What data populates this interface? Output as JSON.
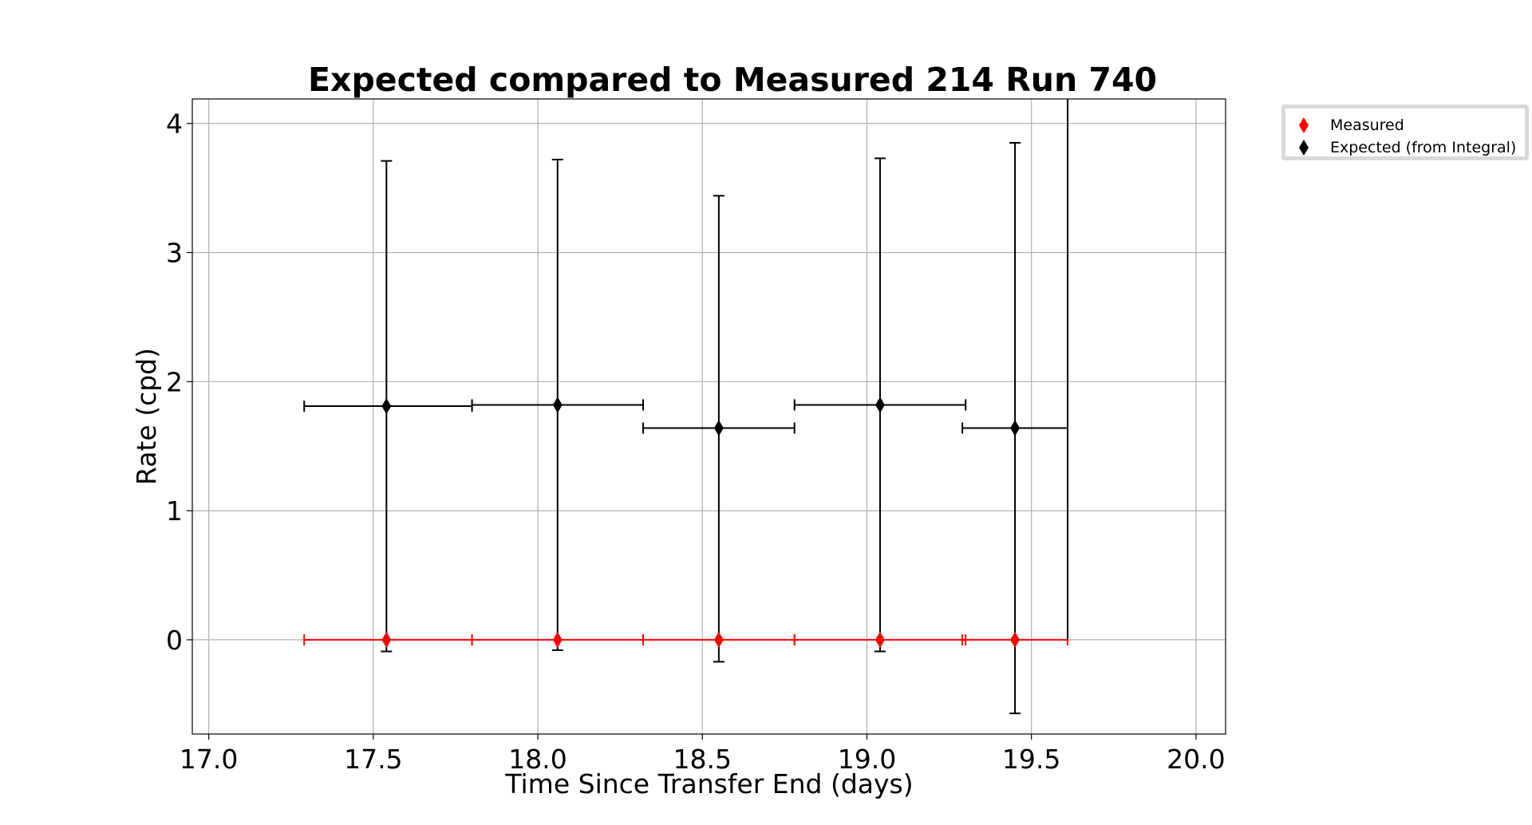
{
  "chart_data": {
    "type": "scatter",
    "title": "Expected compared to Measured 214 Run 740",
    "xlabel": "Time Since Transfer End (days)",
    "ylabel": "Rate (cpd)",
    "xlim": [
      16.95,
      20.09
    ],
    "ylim": [
      -0.73,
      4.19
    ],
    "xticks": [
      17.0,
      17.5,
      18.0,
      18.5,
      19.0,
      19.5,
      20.0
    ],
    "xtick_labels": [
      "17.0",
      "17.5",
      "18.0",
      "18.5",
      "19.0",
      "19.5",
      "20.0"
    ],
    "yticks": [
      0,
      1,
      2,
      3,
      4
    ],
    "ytick_labels": [
      "0",
      "1",
      "2",
      "3",
      "4"
    ],
    "grid": true,
    "legend_position": "outside-top-right",
    "series": [
      {
        "name": "Measured",
        "color": "#ff0000",
        "marker": "thin-diamond",
        "points": [
          {
            "x": 17.54,
            "y": 0.0,
            "xerr_low": 0.25,
            "xerr_high": 0.26
          },
          {
            "x": 18.06,
            "y": 0.0,
            "xerr_low": 0.26,
            "xerr_high": 0.26
          },
          {
            "x": 18.55,
            "y": 0.0,
            "xerr_low": 0.23,
            "xerr_high": 0.23
          },
          {
            "x": 19.04,
            "y": 0.0,
            "xerr_low": 0.26,
            "xerr_high": 0.26
          },
          {
            "x": 19.45,
            "y": 0.0,
            "xerr_low": 0.16,
            "xerr_high": 0.16
          }
        ]
      },
      {
        "name": "Expected (from Integral)",
        "color": "#000000",
        "marker": "thin-diamond",
        "points": [
          {
            "x": 17.54,
            "y": 1.81,
            "xerr_low": 0.25,
            "xerr_high": 0.26,
            "yerr_low": 1.9,
            "yerr_high": 1.9
          },
          {
            "x": 18.06,
            "y": 1.82,
            "xerr_low": 0.26,
            "xerr_high": 0.26,
            "yerr_low": 1.9,
            "yerr_high": 1.9
          },
          {
            "x": 18.55,
            "y": 1.64,
            "xerr_low": 0.23,
            "xerr_high": 0.23,
            "yerr_low": 1.81,
            "yerr_high": 1.8
          },
          {
            "x": 19.04,
            "y": 1.82,
            "xerr_low": 0.26,
            "xerr_high": 0.26,
            "yerr_low": 1.91,
            "yerr_high": 1.91
          },
          {
            "x": 19.45,
            "y": 1.64,
            "xerr_low": 0.16,
            "xerr_high": 0.16,
            "yerr_low": 2.21,
            "yerr_high": 2.21
          }
        ]
      }
    ],
    "extra_error_bar": {
      "x": 19.61,
      "y_low": 0.0,
      "y_high": 4.19,
      "color": "#000000"
    }
  },
  "legend": {
    "items": [
      {
        "label": "Measured",
        "color": "#ff0000"
      },
      {
        "label": "Expected (from Integral)",
        "color": "#000000"
      }
    ]
  }
}
